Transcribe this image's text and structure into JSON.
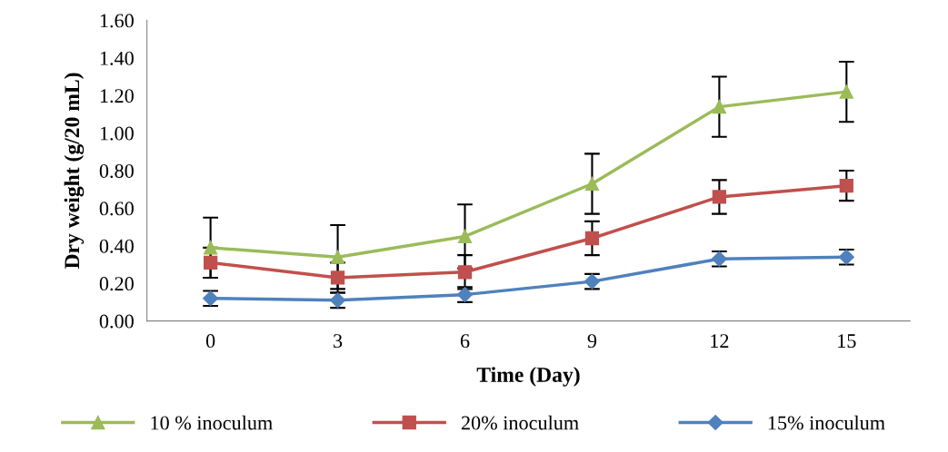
{
  "chart_data": {
    "type": "line",
    "xlabel": "Time (Day)",
    "ylabel": "Dry weight (g/20 mL)",
    "categories": [
      "0",
      "3",
      "6",
      "9",
      "12",
      "15"
    ],
    "ylim": [
      0,
      1.6
    ],
    "yticks": [
      {
        "value": 0,
        "label": "0.00"
      },
      {
        "value": 0.2,
        "label": "0.20"
      },
      {
        "value": 0.4,
        "label": "0.40"
      },
      {
        "value": 0.6,
        "label": "0.60"
      },
      {
        "value": 0.8,
        "label": "0.80"
      },
      {
        "value": 1.0,
        "label": "1.00"
      },
      {
        "value": 1.2,
        "label": "1.20"
      },
      {
        "value": 1.4,
        "label": "1.40"
      },
      {
        "value": 1.6,
        "label": "1.60"
      }
    ],
    "grid": false,
    "legend": "bottom",
    "line_style": "solid",
    "series": [
      {
        "name": "10 % inoculum",
        "color": "#9bbb59",
        "marker": "triangle",
        "values": [
          0.39,
          0.34,
          0.45,
          0.73,
          1.14,
          1.22
        ],
        "errors": [
          0.16,
          0.17,
          0.17,
          0.16,
          0.16,
          0.16
        ]
      },
      {
        "name": "20% inoculum",
        "color": "#c0504d",
        "marker": "square",
        "values": [
          0.31,
          0.23,
          0.26,
          0.44,
          0.66,
          0.72
        ],
        "errors": [
          0.08,
          0.08,
          0.09,
          0.09,
          0.09,
          0.08
        ]
      },
      {
        "name": "15% inoculum",
        "color": "#4f81bd",
        "marker": "diamond",
        "values": [
          0.12,
          0.11,
          0.14,
          0.21,
          0.33,
          0.34
        ],
        "errors": [
          0.04,
          0.04,
          0.04,
          0.04,
          0.04,
          0.04
        ]
      }
    ]
  }
}
